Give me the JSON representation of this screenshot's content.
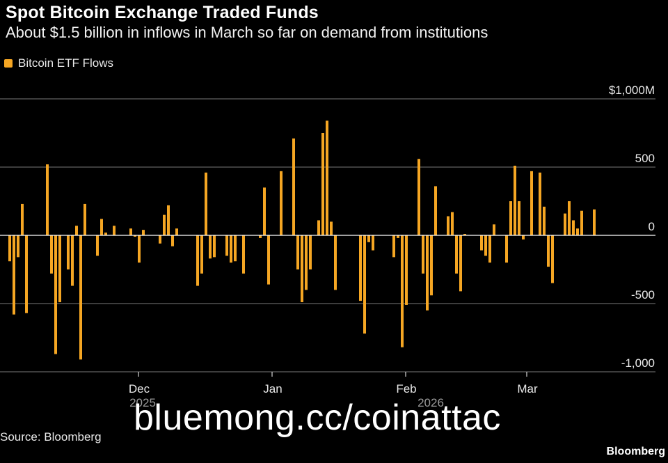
{
  "chart_data": {
    "type": "bar",
    "title": "Spot Bitcoin Exchange Traded Funds",
    "subtitle": "About $1.5 billion in inflows in March so far on demand from institutions",
    "series_name": "Bitcoin ETF Flows",
    "colors": {
      "bar": "#f5a623",
      "grid": "#7a7a7a",
      "zero": "#ffffff",
      "background": "#000000"
    },
    "ylim": [
      -1000,
      1000
    ],
    "yticks": [
      {
        "value": 1000,
        "label": "$1,000M"
      },
      {
        "value": 500,
        "label": "500"
      },
      {
        "value": 0,
        "label": "0"
      },
      {
        "value": -500,
        "label": "-500"
      },
      {
        "value": -1000,
        "label": "-1,000"
      }
    ],
    "xticks": [
      {
        "index": 31,
        "label": "Dec"
      },
      {
        "index": 63,
        "label": "Jan"
      },
      {
        "index": 95,
        "label": "Feb"
      },
      {
        "index": 124,
        "label": "Mar"
      }
    ],
    "year_labels": [
      {
        "index": 32,
        "label": "2025"
      },
      {
        "index": 101,
        "label": "2026"
      }
    ],
    "values": [
      -190,
      -580,
      -160,
      230,
      -570,
      0,
      0,
      0,
      0,
      520,
      -280,
      -870,
      -490,
      0,
      -250,
      -370,
      70,
      -910,
      230,
      0,
      0,
      -150,
      120,
      20,
      0,
      70,
      0,
      0,
      0,
      50,
      -10,
      -200,
      40,
      0,
      0,
      0,
      -60,
      150,
      220,
      -80,
      50,
      0,
      0,
      0,
      0,
      -370,
      -280,
      460,
      -170,
      -160,
      0,
      0,
      -150,
      -200,
      -190,
      0,
      -280,
      0,
      0,
      0,
      -20,
      350,
      -360,
      0,
      0,
      470,
      0,
      0,
      710,
      -250,
      -490,
      -400,
      -250,
      0,
      110,
      750,
      840,
      100,
      -400,
      0,
      0,
      0,
      0,
      0,
      -480,
      -720,
      -50,
      -110,
      0,
      0,
      0,
      0,
      -160,
      -20,
      -820,
      -510,
      0,
      0,
      560,
      -280,
      -550,
      -440,
      360,
      0,
      0,
      140,
      170,
      -280,
      -410,
      10,
      0,
      0,
      0,
      -110,
      -150,
      -200,
      80,
      0,
      0,
      -200,
      250,
      510,
      250,
      -30,
      0,
      470,
      0,
      460,
      210,
      -230,
      -350,
      0,
      0,
      160,
      250,
      110,
      50,
      180,
      0,
      0,
      190
    ]
  },
  "legend": {
    "label": "Bitcoin ETF Flows"
  },
  "footer": {
    "source": "Source: Bloomberg",
    "brand": "Bloomberg",
    "watermark": "bluemong.cc/coinattac"
  }
}
